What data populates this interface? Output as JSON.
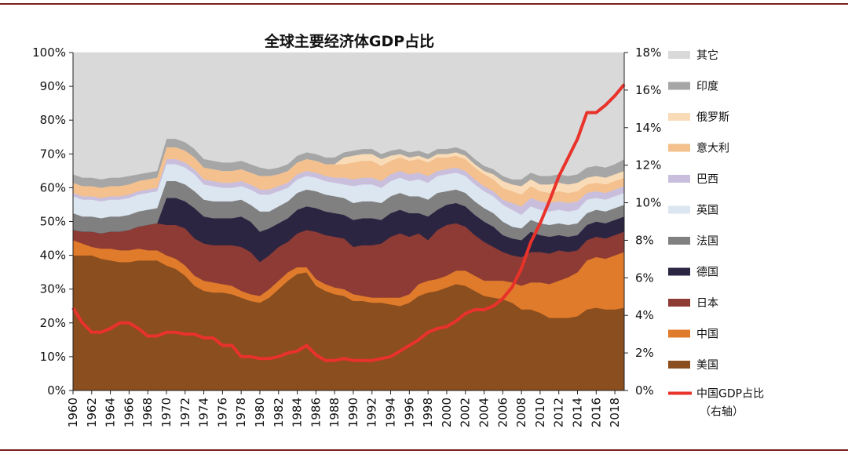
{
  "chart_data": {
    "type": "area",
    "title": "全球主要经济体GDP占比",
    "x": [
      1960,
      1961,
      1962,
      1963,
      1964,
      1965,
      1966,
      1967,
      1968,
      1969,
      1970,
      1971,
      1972,
      1973,
      1974,
      1975,
      1976,
      1977,
      1978,
      1979,
      1980,
      1981,
      1982,
      1983,
      1984,
      1985,
      1986,
      1987,
      1988,
      1989,
      1990,
      1991,
      1992,
      1993,
      1994,
      1995,
      1996,
      1997,
      1998,
      1999,
      2000,
      2001,
      2002,
      2003,
      2004,
      2005,
      2006,
      2007,
      2008,
      2009,
      2010,
      2011,
      2012,
      2013,
      2014,
      2015,
      2016,
      2017,
      2018,
      2019
    ],
    "x_tick_labels": [
      "1960",
      "1962",
      "1964",
      "1966",
      "1968",
      "1970",
      "1972",
      "1974",
      "1976",
      "1978",
      "1980",
      "1982",
      "1984",
      "1986",
      "1988",
      "1990",
      "1992",
      "1994",
      "1996",
      "1998",
      "2000",
      "2002",
      "2004",
      "2006",
      "2008",
      "2010",
      "2012",
      "2014",
      "2016",
      "2018"
    ],
    "y_left": {
      "ticks": [
        "0%",
        "10%",
        "20%",
        "30%",
        "40%",
        "50%",
        "60%",
        "70%",
        "80%",
        "90%",
        "100%"
      ],
      "range": [
        0,
        100
      ]
    },
    "y_right": {
      "ticks": [
        "0%",
        "2%",
        "4%",
        "6%",
        "8%",
        "10%",
        "12%",
        "14%",
        "16%",
        "18%"
      ],
      "range": [
        0,
        18
      ]
    },
    "stacked_series": [
      {
        "name": "美国",
        "color": "#8B4E1E",
        "values": [
          40,
          40,
          40,
          39,
          38.5,
          38,
          38,
          38.5,
          38.5,
          38.5,
          37,
          36,
          34,
          31,
          29.5,
          29,
          29,
          28.5,
          27.5,
          26.5,
          26,
          27.5,
          30,
          32.5,
          34.5,
          35,
          31,
          29.5,
          28.5,
          28,
          26.5,
          26.5,
          26,
          26,
          25.5,
          25,
          26,
          28,
          29,
          29.5,
          30.5,
          31.5,
          31,
          29.5,
          28,
          27.5,
          27,
          26,
          24,
          24,
          23,
          21.5,
          21.5,
          21.5,
          22,
          24,
          24.5,
          24,
          24,
          24.5
        ]
      },
      {
        "name": "中国",
        "color": "#E07B2B",
        "values": [
          4.5,
          3.5,
          2.5,
          3,
          3.5,
          3.5,
          3.5,
          3.5,
          3,
          3,
          3,
          3,
          3,
          3,
          3,
          3,
          2.5,
          2.5,
          2,
          2,
          2,
          2.5,
          2.5,
          2.5,
          2,
          1.5,
          2,
          2,
          2,
          2,
          2,
          1.5,
          1.5,
          1.5,
          2,
          2.5,
          2.5,
          3.5,
          3.5,
          3.5,
          3.5,
          4,
          4.5,
          4.5,
          4.5,
          5,
          5.5,
          6,
          7,
          8,
          9,
          10,
          11,
          12,
          13,
          14.5,
          15,
          15,
          16,
          16.5
        ]
      },
      {
        "name": "日本",
        "color": "#8E3B35",
        "values": [
          3,
          3.5,
          4.5,
          4.5,
          5,
          5.5,
          6,
          6.5,
          7.5,
          8,
          9,
          10,
          11,
          11,
          11,
          11,
          11.5,
          12,
          13,
          12.5,
          10,
          10,
          10,
          9,
          10,
          11,
          14,
          14.5,
          15,
          15,
          14,
          15,
          15.5,
          16,
          18,
          19,
          17,
          15,
          12,
          14.5,
          15,
          14,
          13,
          12,
          11.5,
          10,
          8.5,
          8,
          8.5,
          9,
          9,
          9,
          9,
          7.5,
          6.5,
          6,
          6,
          6,
          6,
          6
        ]
      },
      {
        "name": "德国",
        "color": "#2C2542",
        "values": [
          0,
          0,
          0,
          0,
          0,
          0,
          0,
          0,
          0,
          0,
          8,
          8,
          8,
          9,
          8,
          8,
          8,
          8,
          9,
          9,
          9,
          8,
          7,
          7,
          7,
          7,
          7,
          7,
          7,
          7,
          8,
          8,
          8,
          7,
          7,
          7,
          7,
          6,
          7,
          6,
          6,
          6,
          6,
          6,
          6,
          6,
          5,
          5,
          5,
          6,
          5,
          5,
          4.5,
          4.5,
          4.5,
          4.5,
          4.5,
          4.5,
          4.5,
          4.5
        ]
      },
      {
        "name": "法国",
        "color": "#808080",
        "values": [
          5,
          4.5,
          4.5,
          4.5,
          4.5,
          4.5,
          4.5,
          4.5,
          4.5,
          4.5,
          5,
          5,
          5,
          5,
          5,
          5,
          5,
          5,
          5,
          5,
          6,
          5,
          5,
          5,
          5,
          5,
          5,
          5,
          5,
          5,
          5,
          5,
          5,
          5,
          5,
          5,
          5,
          5,
          5,
          5,
          4,
          4,
          4,
          4,
          4,
          4,
          4,
          3.5,
          3.5,
          3.5,
          3.5,
          3.5,
          3.5,
          3.5,
          3.5,
          3.5,
          3.5,
          3.5,
          3.5,
          3.5
        ]
      },
      {
        "name": "英国",
        "color": "#DCE6F1",
        "values": [
          5,
          5,
          5,
          5,
          5,
          5,
          5,
          5,
          5,
          5,
          5,
          5,
          5,
          5,
          4.5,
          4.5,
          4,
          4,
          4,
          4.5,
          5,
          5,
          4.5,
          4,
          4,
          4,
          4,
          4,
          4,
          4,
          5,
          5,
          5,
          4.5,
          4.5,
          4.5,
          4.5,
          5,
          5,
          5,
          5,
          5,
          5,
          5,
          5,
          5,
          5,
          5,
          4,
          4,
          4,
          4,
          4,
          4,
          4,
          4,
          3.5,
          3.5,
          3.5,
          3.5
        ]
      },
      {
        "name": "巴西",
        "color": "#C9BFDD",
        "values": [
          1,
          1,
          1,
          1,
          1,
          1,
          1,
          1,
          1,
          1,
          1.5,
          1.5,
          1.5,
          1.5,
          1.5,
          1.5,
          1.5,
          1.5,
          1.5,
          1.5,
          1.5,
          1.5,
          1.5,
          1.5,
          1.5,
          1.5,
          1.5,
          1.5,
          1.5,
          2,
          2,
          2,
          2,
          2,
          2,
          2,
          2,
          2,
          2,
          1.5,
          1.5,
          1.5,
          1.5,
          1.5,
          1.5,
          1.5,
          1.5,
          2,
          2.5,
          2.5,
          2.5,
          2.5,
          2.5,
          2.5,
          2.5,
          2,
          2,
          2,
          2,
          2
        ]
      },
      {
        "name": "意大利",
        "color": "#F4C08E",
        "values": [
          3,
          3,
          3,
          3,
          3,
          3,
          3,
          3,
          3,
          3,
          3.5,
          3.5,
          3.5,
          3.5,
          3.5,
          3.5,
          3.5,
          3.5,
          3.5,
          3.5,
          4,
          4,
          3.5,
          3.5,
          3.5,
          3.5,
          3.5,
          3.5,
          4,
          4,
          5,
          5,
          5,
          4.5,
          4,
          4,
          4,
          4,
          4,
          4,
          3.5,
          3.5,
          3.5,
          3.5,
          3.5,
          3.5,
          3.5,
          3.5,
          3.5,
          3.5,
          3,
          3,
          3,
          3,
          3,
          2.5,
          2.5,
          2.5,
          2.5,
          2.5
        ]
      },
      {
        "name": "俄罗斯",
        "color": "#F9DCB7",
        "values": [
          0,
          0,
          0,
          0,
          0,
          0,
          0,
          0,
          0,
          0,
          0,
          0,
          0,
          0,
          0,
          0,
          0,
          0,
          0,
          0,
          0,
          0,
          0,
          0,
          0,
          0,
          0,
          0,
          0,
          2,
          2,
          2,
          2,
          2,
          1.5,
          1,
          1,
          1,
          1,
          1,
          1,
          1,
          1,
          1,
          1,
          1.5,
          2,
          2,
          2.5,
          2,
          2,
          2.5,
          2.5,
          2.5,
          2.5,
          2,
          2,
          2,
          2,
          2
        ]
      },
      {
        "name": "印度",
        "color": "#A6A6A6",
        "values": [
          2.5,
          2.5,
          2.5,
          2.5,
          2.5,
          2.5,
          2.5,
          2,
          2,
          2,
          2.5,
          2.5,
          2.5,
          2.5,
          2.5,
          2.5,
          2.5,
          2.5,
          2.5,
          2.5,
          2.5,
          2,
          2,
          2,
          2,
          2,
          2,
          2,
          2,
          1.5,
          1.5,
          1.5,
          1.5,
          1.5,
          1.5,
          1.5,
          1.5,
          1.5,
          1.5,
          1.5,
          1.5,
          1.5,
          1.5,
          1.5,
          1.5,
          1.5,
          1.5,
          1.5,
          2,
          2,
          2.5,
          2.5,
          2.5,
          2.5,
          2.5,
          3,
          3,
          3,
          3,
          3.5
        ]
      },
      {
        "name": "其它",
        "color": "#D9D9D9",
        "fill_to_top": true
      }
    ],
    "line_series": {
      "name": "中国GDP占比",
      "name_note": "（右轴）",
      "color": "#E8322A",
      "axis": "right",
      "values": [
        4.4,
        3.6,
        3.1,
        3.1,
        3.3,
        3.6,
        3.6,
        3.3,
        2.9,
        2.9,
        3.1,
        3.1,
        3.0,
        3.0,
        2.8,
        2.8,
        2.4,
        2.4,
        1.8,
        1.8,
        1.7,
        1.7,
        1.8,
        2.0,
        2.1,
        2.4,
        1.9,
        1.6,
        1.6,
        1.7,
        1.6,
        1.6,
        1.6,
        1.7,
        1.8,
        2.1,
        2.4,
        2.7,
        3.1,
        3.3,
        3.4,
        3.7,
        4.1,
        4.3,
        4.3,
        4.5,
        4.9,
        5.5,
        6.5,
        7.9,
        8.9,
        10.1,
        11.4,
        12.4,
        13.4,
        14.8,
        14.8,
        15.2,
        15.7,
        16.3
      ]
    },
    "legend_placement": "right"
  }
}
